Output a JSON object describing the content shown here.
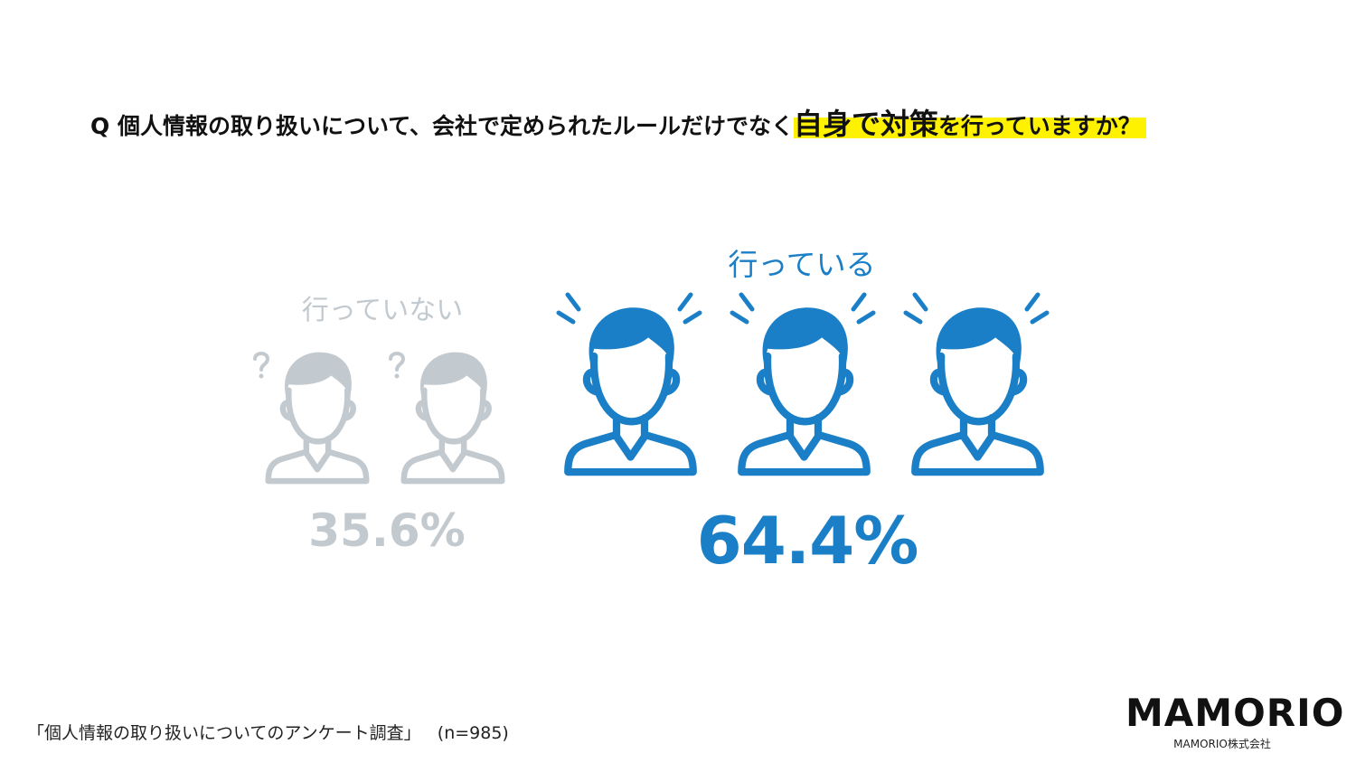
{
  "question": {
    "prefix": "Q 個人情報の取り扱いについて、会社で定められたルールだけでなく",
    "highlight": "自身で対策",
    "suffix": "を行っていますか？"
  },
  "groups": [
    {
      "label": "行っていない",
      "value": "35.6%"
    },
    {
      "label": "行っている",
      "value": "64.4%"
    }
  ],
  "footer": {
    "source": "「個人情報の取り扱いについてのアンケート調査」",
    "sample": "(n=985)"
  },
  "logo": {
    "name": "MAMORIO",
    "company": "MAMORIO株式会社"
  }
}
